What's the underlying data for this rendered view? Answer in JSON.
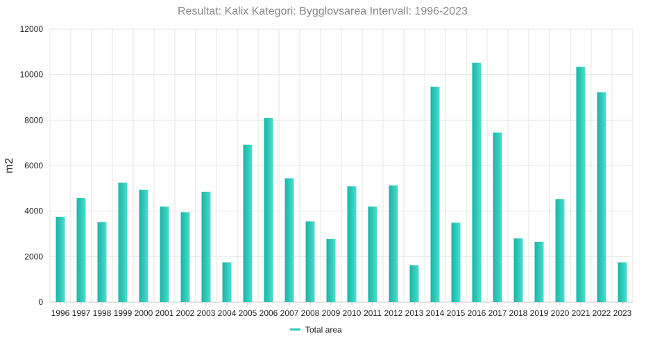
{
  "chart_data": {
    "type": "bar",
    "title": "Resultat: Kalix Kategori: Bygglovsarea Intervall: 1996-2023",
    "xlabel": "",
    "ylabel": "m2",
    "ylim": [
      0,
      12000
    ],
    "yticks": [
      "0",
      "2000",
      "4000",
      "6000",
      "8000",
      "10000",
      "12000"
    ],
    "grid": true,
    "legend_position": "bottom-center",
    "categories": [
      "1996",
      "1997",
      "1998",
      "1999",
      "2000",
      "2001",
      "2002",
      "2003",
      "2004",
      "2005",
      "2006",
      "2007",
      "2008",
      "2009",
      "2010",
      "2011",
      "2012",
      "2013",
      "2014",
      "2015",
      "2016",
      "2017",
      "2018",
      "2019",
      "2020",
      "2021",
      "2022",
      "2023"
    ],
    "series": [
      {
        "name": "Total area",
        "color": "#2ac8b8",
        "values": [
          3750,
          4570,
          3520,
          5250,
          4940,
          4200,
          3950,
          4850,
          1750,
          6920,
          8100,
          5440,
          3550,
          2770,
          5090,
          4200,
          5130,
          1620,
          9470,
          3490,
          10520,
          7450,
          2800,
          2650,
          4530,
          10340,
          9220,
          1750
        ]
      }
    ]
  }
}
